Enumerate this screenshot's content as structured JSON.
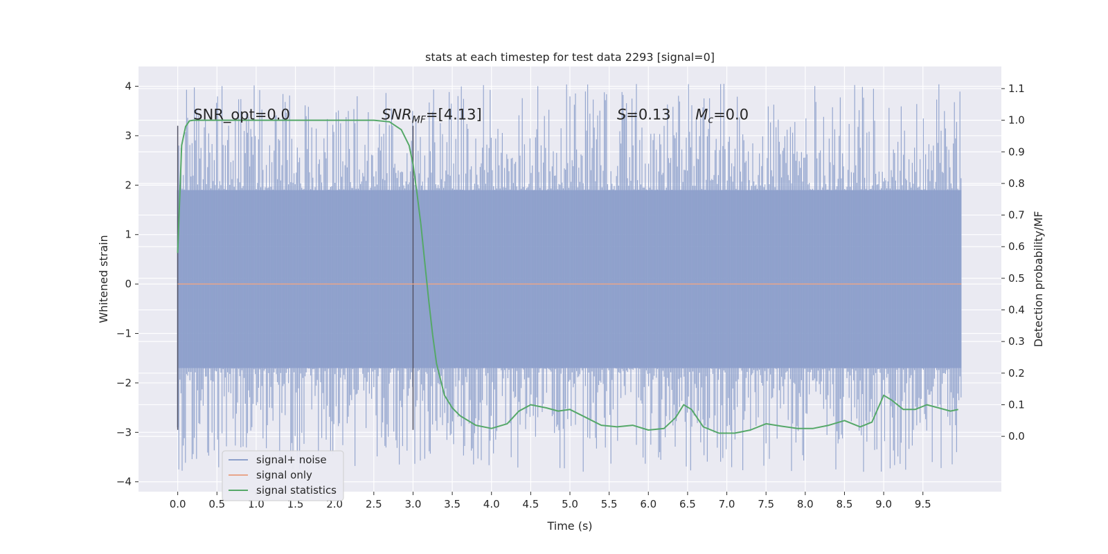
{
  "chart_data": {
    "type": "line",
    "title": "stats at each timestep for test data 2293 [signal=0]",
    "xlabel": "Time (s)",
    "ylabel": "Whitened strain",
    "y2label": "Detection probability/MF",
    "xlim": [
      -0.5,
      10.5
    ],
    "ylim": [
      -4.2,
      4.4
    ],
    "y2lim": [
      -0.175,
      1.17
    ],
    "xticks": [
      0.0,
      0.5,
      1.0,
      1.5,
      2.0,
      2.5,
      3.0,
      3.5,
      4.0,
      4.5,
      5.0,
      5.5,
      6.0,
      6.5,
      7.0,
      7.5,
      8.0,
      8.5,
      9.0,
      9.5
    ],
    "xtick_labels": [
      "0.0",
      "0.5",
      "1.0",
      "1.5",
      "2.0",
      "2.5",
      "3.0",
      "3.5",
      "4.0",
      "4.5",
      "5.0",
      "5.5",
      "6.0",
      "6.5",
      "7.0",
      "7.5",
      "8.0",
      "8.5",
      "9.0",
      "9.5"
    ],
    "yticks": [
      4,
      3,
      2,
      1,
      0,
      -1,
      -2,
      -3,
      -4
    ],
    "ytick_labels": [
      "4",
      "3",
      "2",
      "1",
      "0",
      "−1",
      "−2",
      "−3",
      "−4"
    ],
    "y2ticks": [
      1.1,
      1.0,
      0.9,
      0.8,
      0.7,
      0.6,
      0.5,
      0.4,
      0.3,
      0.2,
      0.1,
      0.0
    ],
    "y2tick_labels": [
      "1.1",
      "1.0",
      "0.9",
      "0.8",
      "0.7",
      "0.6",
      "0.5",
      "0.4",
      "0.3",
      "0.2",
      "0.1",
      "0.0"
    ],
    "grid": true,
    "legend_position": "lower-left",
    "series": [
      {
        "name": "signal+ noise",
        "color": "#8da0cb",
        "x_range": [
          0.0,
          9.99
        ],
        "core_band": [
          -1.7,
          1.9
        ],
        "peak_high": 4.05,
        "peak_low": -3.8
      },
      {
        "name": "signal only",
        "color": "#e8a58a",
        "x": [
          0.0,
          9.99
        ],
        "y": [
          0.0,
          0.0
        ]
      },
      {
        "name": "signal statistics",
        "color": "#55a868",
        "axis": "right",
        "x": [
          0.0,
          0.05,
          0.1,
          0.15,
          0.2,
          0.3,
          0.5,
          1.0,
          1.5,
          2.0,
          2.5,
          2.7,
          2.85,
          2.95,
          3.0,
          3.05,
          3.1,
          3.15,
          3.2,
          3.25,
          3.3,
          3.4,
          3.5,
          3.6,
          3.8,
          4.0,
          4.2,
          4.35,
          4.5,
          4.7,
          4.85,
          5.0,
          5.2,
          5.4,
          5.6,
          5.8,
          6.0,
          6.2,
          6.35,
          6.45,
          6.55,
          6.7,
          6.9,
          7.1,
          7.3,
          7.5,
          7.7,
          7.9,
          8.1,
          8.3,
          8.5,
          8.7,
          8.85,
          9.0,
          9.1,
          9.25,
          9.4,
          9.55,
          9.7,
          9.85,
          9.95
        ],
        "y": [
          0.58,
          0.92,
          0.98,
          0.998,
          1.0,
          1.0,
          1.0,
          1.0,
          1.0,
          1.0,
          1.0,
          0.995,
          0.97,
          0.92,
          0.86,
          0.77,
          0.67,
          0.55,
          0.43,
          0.32,
          0.23,
          0.13,
          0.09,
          0.065,
          0.035,
          0.025,
          0.04,
          0.08,
          0.1,
          0.09,
          0.08,
          0.085,
          0.06,
          0.035,
          0.03,
          0.035,
          0.02,
          0.025,
          0.06,
          0.1,
          0.085,
          0.03,
          0.01,
          0.01,
          0.02,
          0.04,
          0.032,
          0.025,
          0.025,
          0.035,
          0.05,
          0.03,
          0.045,
          0.13,
          0.115,
          0.085,
          0.085,
          0.1,
          0.09,
          0.08,
          0.085
        ]
      }
    ],
    "vertical_lines": [
      0.0,
      3.0
    ],
    "annotations": [
      {
        "text": "SNR_opt=0.0",
        "x": 0.2
      },
      {
        "text": "SNR",
        "sub": "MF",
        "after": "=[4.13]",
        "x": 2.6,
        "italic": "SNR"
      },
      {
        "text": "S",
        "after": "=0.13",
        "x": 5.6,
        "italic": "S"
      },
      {
        "text": "M",
        "sub": "c",
        "after": "=0.0",
        "x": 6.6,
        "italic": "M"
      }
    ],
    "annotation_y": 1.0
  }
}
